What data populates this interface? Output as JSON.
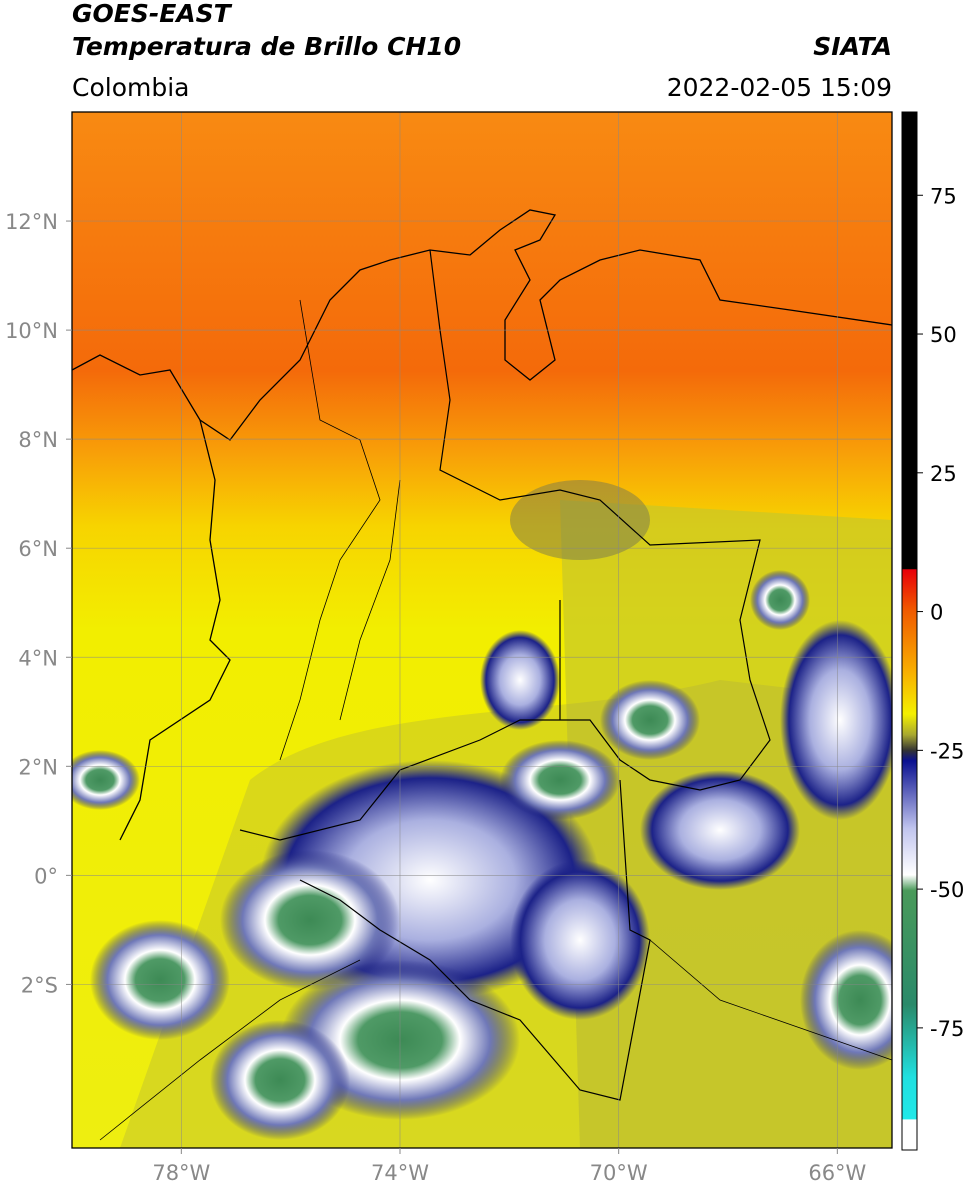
{
  "header": {
    "satellite": "GOES-EAST",
    "product": "Temperatura de Brillo CH10",
    "source": "SIATA",
    "region": "Colombia",
    "datetime": "2022-02-05 15:09"
  },
  "map": {
    "lon_lim": [
      -80,
      -65
    ],
    "lat_lim": [
      -5,
      14
    ],
    "lon_ticks": [
      {
        "value": -78,
        "label": "78°W"
      },
      {
        "value": -74,
        "label": "74°W"
      },
      {
        "value": -70,
        "label": "70°W"
      },
      {
        "value": -66,
        "label": "66°W"
      }
    ],
    "lat_ticks": [
      {
        "value": 12,
        "label": "12°N"
      },
      {
        "value": 10,
        "label": "10°N"
      },
      {
        "value": 8,
        "label": "8°N"
      },
      {
        "value": 6,
        "label": "6°N"
      },
      {
        "value": 4,
        "label": "4°N"
      },
      {
        "value": 2,
        "label": "2°N"
      },
      {
        "value": 0,
        "label": "0°"
      },
      {
        "value": -2,
        "label": "2°S"
      }
    ],
    "grid": true
  },
  "colorbar": {
    "lim": [
      -97,
      90
    ],
    "ticks": [
      75,
      50,
      25,
      0,
      -25,
      -50,
      -75
    ]
  }
}
